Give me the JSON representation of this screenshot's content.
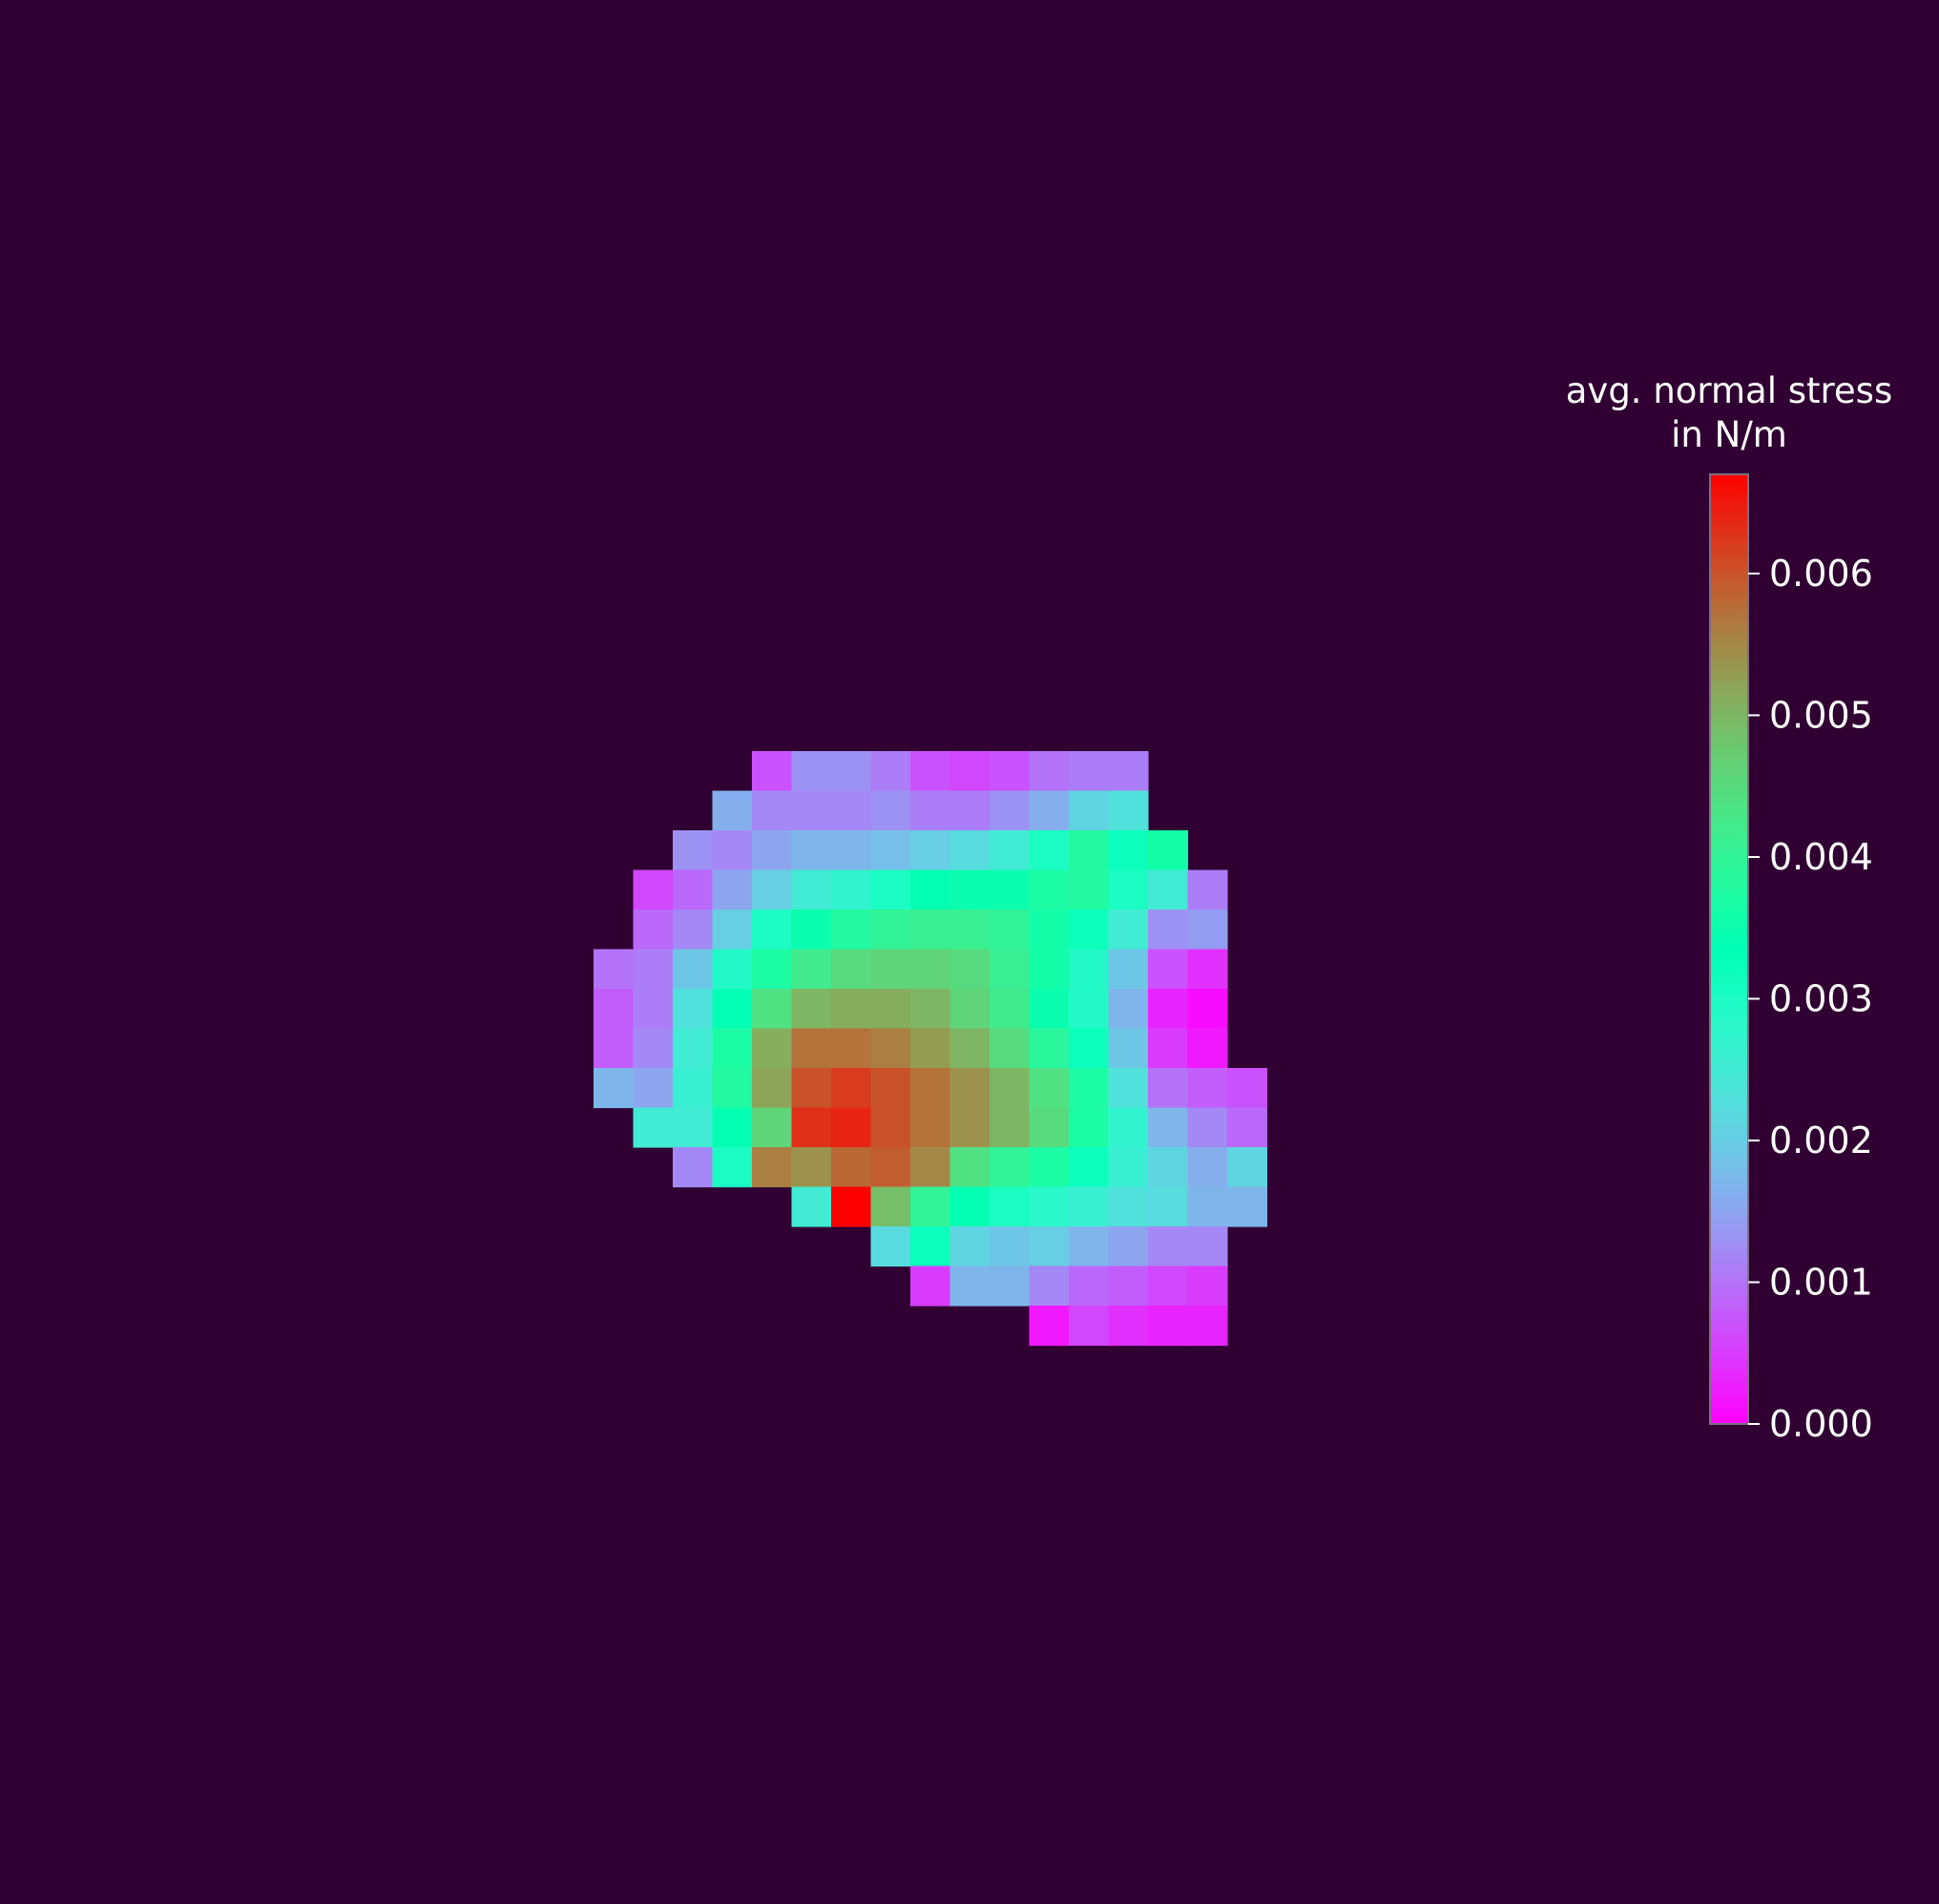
{
  "chart_data": {
    "type": "heatmap",
    "title": "",
    "xlabel": "",
    "ylabel": "",
    "background": "#300033",
    "colormap": "rainbow",
    "vmin": 0,
    "vmax": 0.0067,
    "colorbar": {
      "label_line1": "avg. normal stress",
      "label_line2": "in N/m",
      "ticks": [
        0.0,
        0.001,
        0.002,
        0.003,
        0.004,
        0.005,
        0.006
      ],
      "tick_labels": [
        "0.000",
        "0.001",
        "0.002",
        "0.003",
        "0.004",
        "0.005",
        "0.006"
      ]
    },
    "grid_origin_col": 15,
    "grid_origin_row": 19,
    "cells": [
      [
        null,
        null,
        null,
        null,
        0.0007,
        0.0013,
        0.0013,
        0.0011,
        0.0007,
        0.0006,
        0.0007,
        0.001,
        0.0011,
        0.0011,
        null,
        null,
        null
      ],
      [
        null,
        null,
        null,
        0.0016,
        0.0012,
        0.0012,
        0.0012,
        0.0013,
        0.0011,
        0.0011,
        0.0013,
        0.0016,
        0.0021,
        0.0023,
        null,
        null,
        null
      ],
      [
        null,
        null,
        0.0013,
        0.0012,
        0.0015,
        0.0017,
        0.0017,
        0.0018,
        0.002,
        0.0022,
        0.0025,
        0.003,
        0.0038,
        0.0032,
        0.0036,
        null,
        null
      ],
      [
        null,
        0.0006,
        0.0009,
        0.0015,
        0.002,
        0.0025,
        0.0027,
        0.003,
        0.0034,
        0.0035,
        0.0035,
        0.0037,
        0.0038,
        0.003,
        0.0025,
        0.0011,
        null
      ],
      [
        null,
        0.0009,
        0.0012,
        0.002,
        0.003,
        0.0035,
        0.0038,
        0.004,
        0.0041,
        0.0041,
        0.004,
        0.0036,
        0.0032,
        0.0025,
        0.0013,
        0.0014,
        null
      ],
      [
        0.001,
        0.0011,
        0.0019,
        0.0029,
        0.0037,
        0.0042,
        0.0045,
        0.0046,
        0.0046,
        0.0045,
        0.0041,
        0.0036,
        0.0029,
        0.0019,
        0.0007,
        0.0004,
        null
      ],
      [
        0.0008,
        0.0011,
        0.0023,
        0.0033,
        0.0044,
        0.005,
        0.0051,
        0.0051,
        0.005,
        0.0046,
        0.0042,
        0.0035,
        0.0029,
        0.0017,
        0.0003,
        0.0001,
        null
      ],
      [
        0.0008,
        0.0012,
        0.0025,
        0.0037,
        0.0051,
        0.0057,
        0.0057,
        0.0056,
        0.0053,
        0.005,
        0.0045,
        0.0039,
        0.0032,
        0.0019,
        0.0005,
        0.0002,
        null
      ],
      [
        0.0017,
        0.0015,
        0.0026,
        0.0038,
        0.0052,
        0.006,
        0.0062,
        0.006,
        0.0057,
        0.0054,
        0.005,
        0.0044,
        0.0037,
        0.0023,
        0.001,
        0.0008,
        0.0007
      ],
      [
        null,
        0.0025,
        0.0025,
        0.0034,
        0.0046,
        0.0063,
        0.0064,
        0.006,
        0.0057,
        0.0054,
        0.005,
        0.0045,
        0.0037,
        0.0027,
        0.0017,
        0.0012,
        0.0009
      ],
      [
        null,
        null,
        0.0012,
        0.003,
        0.0056,
        0.0054,
        0.0058,
        0.0059,
        0.0055,
        0.0044,
        0.004,
        0.0037,
        0.0032,
        0.0026,
        0.0021,
        0.0016,
        0.0021
      ],
      [
        null,
        null,
        null,
        null,
        null,
        0.0025,
        0.0067,
        0.0049,
        0.004,
        0.0034,
        0.003,
        0.0028,
        0.0026,
        0.0023,
        0.0022,
        0.0017,
        0.0017
      ],
      [
        null,
        null,
        null,
        null,
        null,
        null,
        null,
        0.0022,
        0.0032,
        0.0021,
        0.0019,
        0.002,
        0.0017,
        0.0015,
        0.0012,
        0.0012,
        null
      ],
      [
        null,
        null,
        null,
        null,
        null,
        null,
        null,
        null,
        0.0005,
        0.0017,
        0.0017,
        0.0012,
        0.0009,
        0.0008,
        0.0006,
        0.0005,
        null
      ],
      [
        null,
        null,
        null,
        null,
        null,
        null,
        null,
        null,
        null,
        null,
        null,
        0.0002,
        0.0006,
        0.0004,
        0.0003,
        0.0003,
        null
      ]
    ]
  }
}
